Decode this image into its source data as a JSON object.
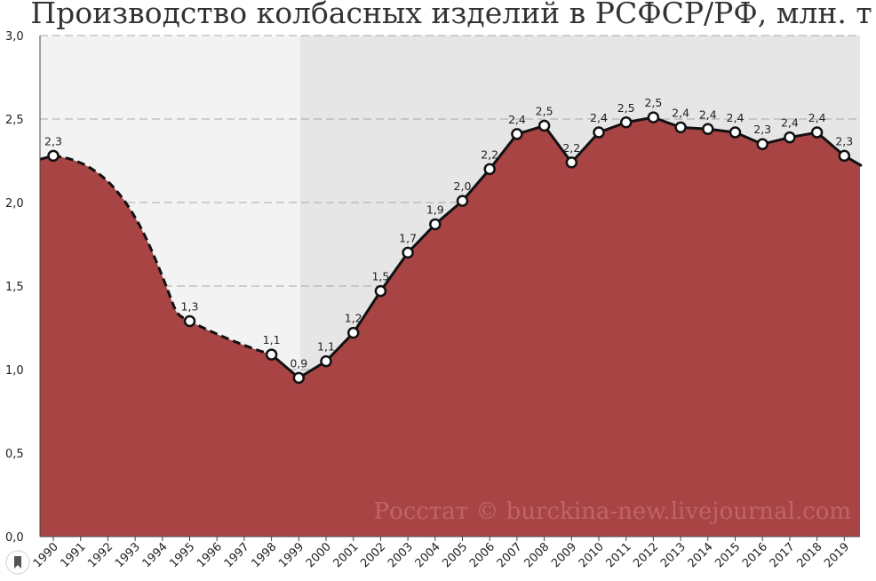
{
  "page": {
    "title": "Производство колбасных изделий в РСФСР/РФ, млн. т",
    "watermark": "Росстат © burckina-new.livejournal.com"
  },
  "chart_data": {
    "type": "area",
    "title": "Производство колбасных изделий в РСФСР/РФ, млн. т",
    "xlabel": "",
    "ylabel": "",
    "ylim": [
      0,
      3.0
    ],
    "yticks": [
      "0,0",
      "0,5",
      "1,0",
      "1,5",
      "2,0",
      "2,5",
      "3,0"
    ],
    "grid": true,
    "categories": [
      "1990",
      "1991",
      "1992",
      "1993",
      "1994",
      "1995",
      "1996",
      "1997",
      "1998",
      "1999",
      "2000",
      "2001",
      "2002",
      "2003",
      "2004",
      "2005",
      "2006",
      "2007",
      "2008",
      "2009",
      "2010",
      "2011",
      "2012",
      "2013",
      "2014",
      "2015",
      "2016",
      "2017",
      "2018",
      "2019"
    ],
    "points": [
      {
        "year": "1990",
        "value": 2.28,
        "label": "2,3"
      },
      {
        "year": "1995",
        "value": 1.29,
        "label": "1,3"
      },
      {
        "year": "1998",
        "value": 1.09,
        "label": "1,1"
      },
      {
        "year": "1999",
        "value": 0.95,
        "label": "0,9"
      },
      {
        "year": "2000",
        "value": 1.05,
        "label": "1,1"
      },
      {
        "year": "2001",
        "value": 1.22,
        "label": "1,2"
      },
      {
        "year": "2002",
        "value": 1.47,
        "label": "1,5"
      },
      {
        "year": "2003",
        "value": 1.7,
        "label": "1,7"
      },
      {
        "year": "2004",
        "value": 1.87,
        "label": "1,9"
      },
      {
        "year": "2005",
        "value": 2.01,
        "label": "2,0"
      },
      {
        "year": "2006",
        "value": 2.2,
        "label": "2,2"
      },
      {
        "year": "2007",
        "value": 2.41,
        "label": "2,4"
      },
      {
        "year": "2008",
        "value": 2.46,
        "label": "2,5"
      },
      {
        "year": "2009",
        "value": 2.24,
        "label": "2,2"
      },
      {
        "year": "2010",
        "value": 2.42,
        "label": "2,4"
      },
      {
        "year": "2011",
        "value": 2.48,
        "label": "2,5"
      },
      {
        "year": "2012",
        "value": 2.51,
        "label": "2,5"
      },
      {
        "year": "2013",
        "value": 2.45,
        "label": "2,4"
      },
      {
        "year": "2014",
        "value": 2.44,
        "label": "2,4"
      },
      {
        "year": "2015",
        "value": 2.42,
        "label": "2,4"
      },
      {
        "year": "2016",
        "value": 2.35,
        "label": "2,3"
      },
      {
        "year": "2017",
        "value": 2.39,
        "label": "2,4"
      },
      {
        "year": "2018",
        "value": 2.42,
        "label": "2,4"
      },
      {
        "year": "2019",
        "value": 2.28,
        "label": "2,3"
      }
    ],
    "colors": {
      "fill": "#a84444",
      "line": "#111111",
      "band_light": "#f3f3f3",
      "band_dark": "#e6e6e6",
      "grid": "#a8a8a8"
    }
  }
}
